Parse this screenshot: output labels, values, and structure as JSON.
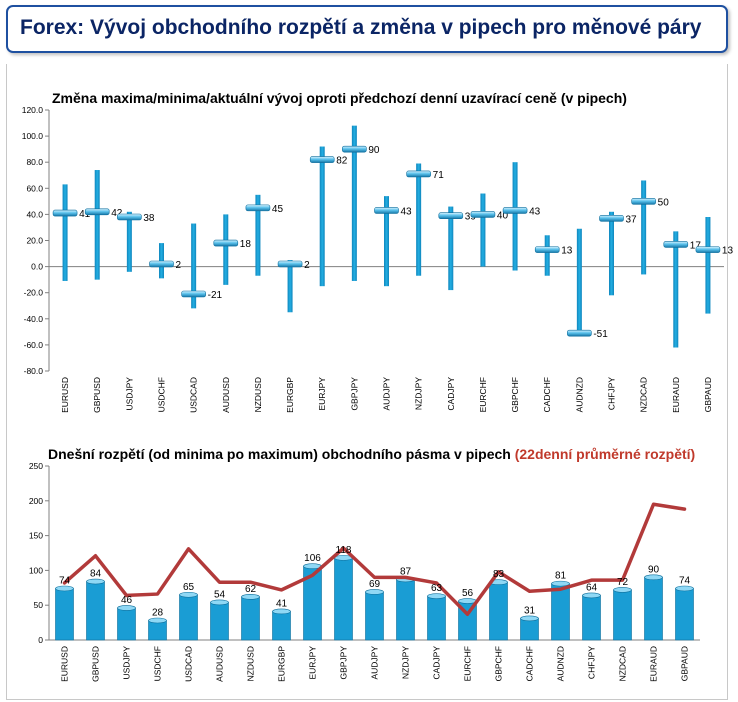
{
  "header": {
    "title": "Forex: Vývoj obchodního rozpětí a změna v pipech pro měnové páry"
  },
  "colors": {
    "header_border": "#1e50a0",
    "header_text": "#0b2565",
    "bar": "#1a9dd4",
    "bar_top": "#8fd8f5",
    "line": "#b23a3a",
    "subtitle_accent": "#c0392b"
  },
  "chart_data": [
    {
      "type": "range-bar",
      "title": "Změna maxima/minima/aktuální vývoj oproti předchozí denní uzavírací ceně (v pipech)",
      "ylim": [
        -80,
        120
      ],
      "yticks": [
        "120.0",
        "100.0",
        "80.0",
        "60.0",
        "40.0",
        "20.0",
        "0.0",
        "-20.0",
        "-40.0",
        "-60.0",
        "-80.0"
      ],
      "grid": false,
      "categories": [
        "EURUSD",
        "GBPUSD",
        "USDJPY",
        "USDCHF",
        "USDCAD",
        "AUDUSD",
        "NZDUSD",
        "EURGBP",
        "EURJPY",
        "GBPJPY",
        "AUDJPY",
        "NZDJPY",
        "CADJPY",
        "EURCHF",
        "GBPCHF",
        "CADCHF",
        "AUDNZD",
        "CHFJPY",
        "NZDCAD",
        "EURAUD",
        "GBPAUD"
      ],
      "high": [
        63,
        74,
        42,
        18,
        33,
        40,
        55,
        5,
        92,
        108,
        54,
        79,
        46,
        56,
        80,
        24,
        29,
        42,
        66,
        27,
        38
      ],
      "low": [
        -11,
        -10,
        -4,
        -9,
        -32,
        -14,
        -7,
        -35,
        -15,
        -11,
        -15,
        -7,
        -18,
        0,
        -3,
        -7,
        -52,
        -22,
        -6,
        -62,
        -36
      ],
      "current": [
        41,
        42,
        38,
        2,
        -21,
        18,
        45,
        2,
        82,
        90,
        43,
        71,
        39,
        40,
        43,
        13,
        -51,
        37,
        50,
        17,
        13
      ],
      "current_labels": [
        "41",
        "42",
        "38",
        "2",
        "-21",
        "18",
        "45",
        "2",
        "82",
        "90",
        "43",
        "71",
        "39",
        "40",
        "43",
        "13",
        "-51",
        "37",
        "50",
        "17",
        "13"
      ]
    },
    {
      "type": "bar-line",
      "title": "Dnešní rozpětí (od minima po maximum) obchodního pásma v pipech",
      "title_extra": "(22denní průměrné rozpětí)",
      "ylim": [
        0,
        250
      ],
      "yticks": [
        "250",
        "200",
        "150",
        "100",
        "50",
        "0"
      ],
      "grid": false,
      "categories": [
        "EURUSD",
        "GBPUSD",
        "USDJPY",
        "USDCHF",
        "USDCAD",
        "AUDUSD",
        "NZDUSD",
        "EURGBP",
        "EURJPY",
        "GBPJPY",
        "AUDJPY",
        "NZDJPY",
        "CADJPY",
        "EURCHF",
        "GBPCHF",
        "CADCHF",
        "AUDNZD",
        "CHFJPY",
        "NZDCAD",
        "EURAUD",
        "GBPAUD"
      ],
      "bars": [
        74,
        84,
        46,
        28,
        65,
        54,
        62,
        41,
        106,
        118,
        69,
        87,
        63,
        56,
        83,
        31,
        81,
        64,
        72,
        90,
        74
      ],
      "bar_labels": [
        "74",
        "84",
        "46",
        "28",
        "65",
        "54",
        "62",
        "41",
        "106",
        "118",
        "69",
        "87",
        "63",
        "56",
        "83",
        "31",
        "81",
        "64",
        "72",
        "90",
        "74"
      ],
      "line": [
        82,
        121,
        64,
        66,
        131,
        83,
        83,
        72,
        93,
        132,
        90,
        90,
        82,
        37,
        98,
        70,
        73,
        86,
        86,
        195,
        188
      ]
    }
  ]
}
